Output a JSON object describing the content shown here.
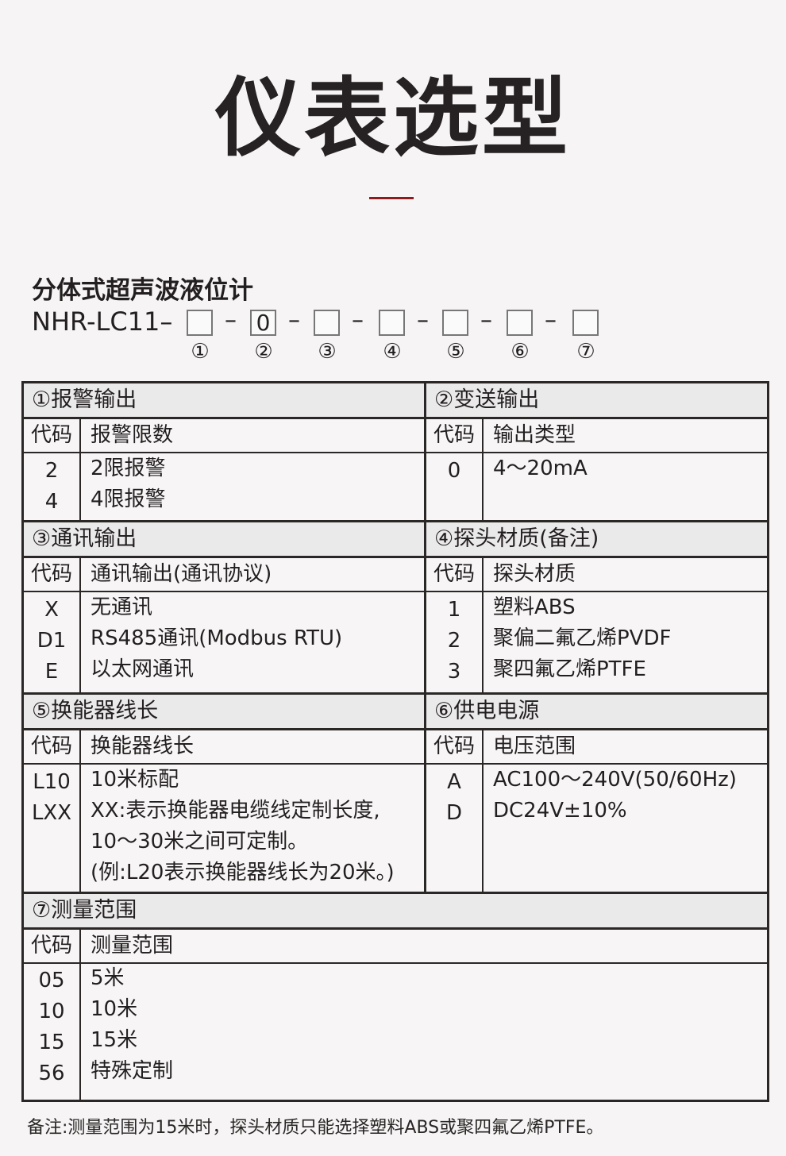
{
  "page_title": "仪表选型",
  "product_name": "分体式超声波液位计",
  "model": {
    "prefix": "NHR-LC11–",
    "dash": "–",
    "boxes": [
      "",
      "0",
      "",
      "",
      "",
      "",
      ""
    ],
    "numbers": [
      "①",
      "②",
      "③",
      "④",
      "⑤",
      "⑥",
      "⑦"
    ]
  },
  "code_label": "代码",
  "sections": [
    {
      "title": "①报警输出",
      "column": "报警限数",
      "rows": [
        [
          "2",
          "2限报警"
        ],
        [
          "4",
          "4限报警"
        ]
      ]
    },
    {
      "title": "②变送输出",
      "column": "输出类型",
      "rows": [
        [
          "0",
          "4～20mA"
        ]
      ]
    },
    {
      "title": "③通讯输出",
      "column": "通讯输出(通讯协议)",
      "rows": [
        [
          "X",
          "无通讯"
        ],
        [
          "D1",
          "RS485通讯(Modbus RTU)"
        ],
        [
          "E",
          "以太网通讯"
        ]
      ]
    },
    {
      "title": "④探头材质(备注)",
      "column": "探头材质",
      "rows": [
        [
          "1",
          "塑料ABS"
        ],
        [
          "2",
          "聚偏二氟乙烯PVDF"
        ],
        [
          "3",
          "聚四氟乙烯PTFE"
        ]
      ]
    },
    {
      "title": "⑤换能器线长",
      "column": "换能器线长",
      "rows": [
        [
          "L10",
          "10米标配"
        ],
        [
          "LXX",
          "XX:表示换能器电缆线定制长度,"
        ],
        [
          "",
          "10～30米之间可定制。"
        ],
        [
          "",
          "(例:L20表示换能器线长为20米。)"
        ]
      ]
    },
    {
      "title": "⑥供电电源",
      "column": "电压范围",
      "rows": [
        [
          "A",
          "AC100～240V(50/60Hz)"
        ],
        [
          "D",
          "DC24V±10%"
        ]
      ]
    },
    {
      "title": "⑦测量范围",
      "column": "测量范围",
      "rows": [
        [
          "05",
          "5米"
        ],
        [
          "10",
          "10米"
        ],
        [
          "15",
          "15米"
        ],
        [
          "56",
          "特殊定制"
        ]
      ]
    }
  ],
  "note": "备注:测量范围为15米时，探头材质只能选择塑料ABS或聚四氟乙烯PTFE。",
  "colors": {
    "accent_line": "#8e1c1c",
    "border": "#2b2727",
    "header_bg": "#ebeaea"
  }
}
